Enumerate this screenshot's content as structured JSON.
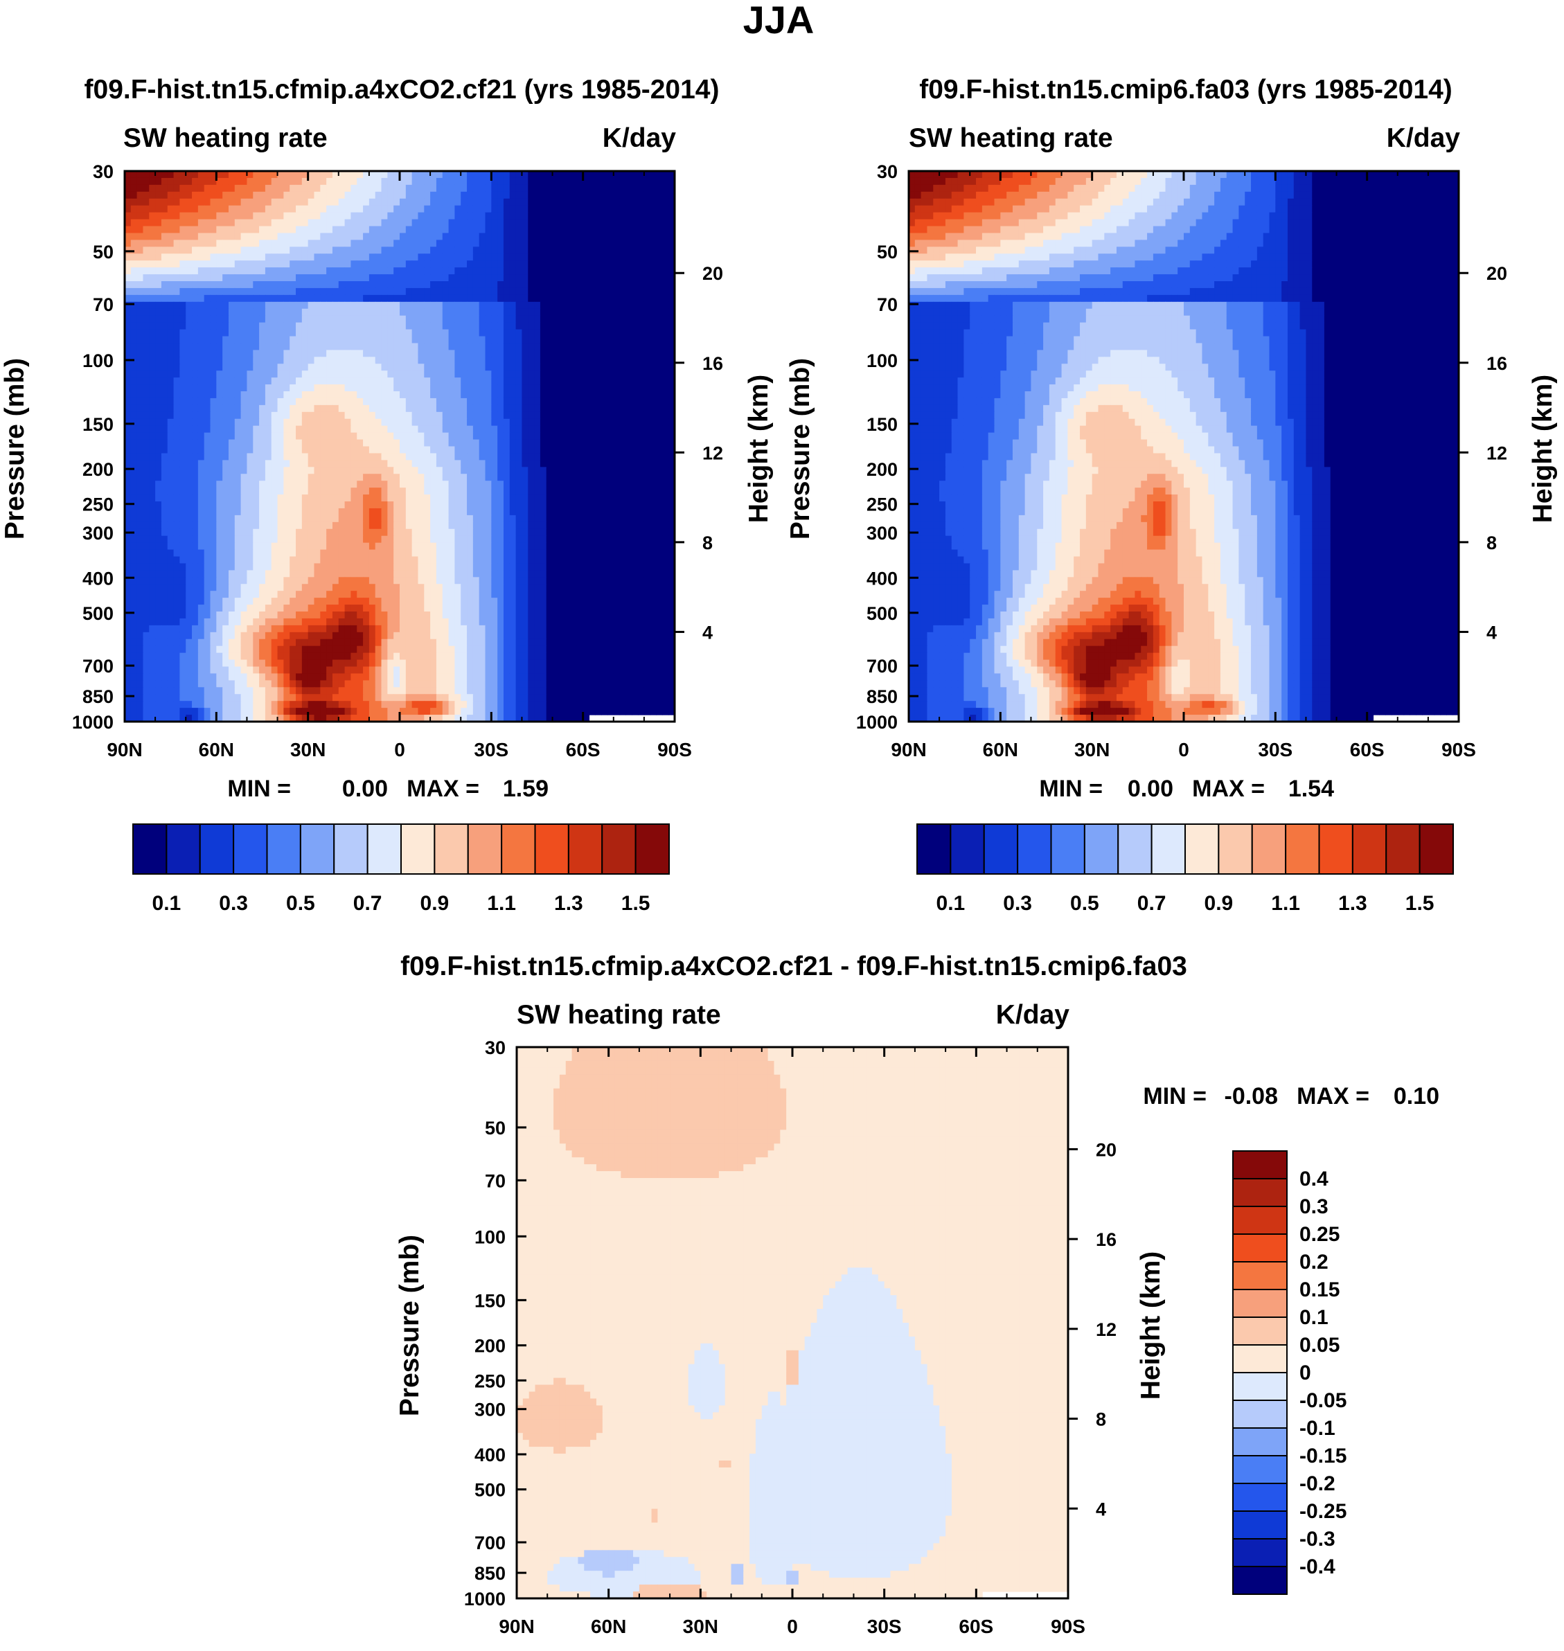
{
  "figure": {
    "title": "JJA"
  },
  "chart_data": [
    {
      "id": "panel1",
      "type": "heatmap",
      "title": "f09.F-hist.tn15.cfmip.a4xCO2.cf21 (yrs 1985-2014)",
      "left_label": "SW heating rate",
      "right_label": "K/day",
      "ylabel": "Pressure (mb)",
      "y2label": "Height (km)",
      "x_ticks": [
        "90N",
        "60N",
        "30N",
        "0",
        "30S",
        "60S",
        "90S"
      ],
      "x_range": [
        90,
        -90
      ],
      "y_ticks": [
        30,
        50,
        70,
        100,
        150,
        200,
        250,
        300,
        400,
        500,
        700,
        850,
        1000
      ],
      "y_range": [
        30,
        1000
      ],
      "y2_ticks": [
        20,
        16,
        12,
        8,
        4
      ],
      "stats": {
        "min_label": "MIN =",
        "min": "0.00",
        "max_label": "MAX =",
        "max": "1.59"
      },
      "colorbar": {
        "orientation": "horizontal",
        "labels": [
          "0.1",
          "0.3",
          "0.5",
          "0.7",
          "0.9",
          "1.1",
          "1.3",
          "1.5"
        ],
        "levels": [
          0.1,
          0.2,
          0.3,
          0.4,
          0.5,
          0.6,
          0.7,
          0.8,
          0.9,
          1.0,
          1.1,
          1.2,
          1.3,
          1.4,
          1.5
        ]
      },
      "blobs": [
        {
          "lat": 30,
          "p": 780,
          "r_lat": 9,
          "r_p": 90,
          "v": 0.4
        },
        {
          "lat": 30,
          "p": 640,
          "r_lat": 18,
          "r_p": 120,
          "v": 0.35
        },
        {
          "lat": 28,
          "p": 935,
          "r_lat": 12,
          "r_p": 60,
          "v": 0.6
        },
        {
          "lat": 26,
          "p": 950,
          "r_lat": 5,
          "r_p": 22,
          "v": 0.5
        },
        {
          "lat": 15,
          "p": 560,
          "r_lat": 8,
          "r_p": 120,
          "v": 0.3
        },
        {
          "lat": 8,
          "p": 270,
          "r_lat": 5,
          "r_p": 60,
          "v": 0.25
        },
        {
          "lat": 2,
          "p": 750,
          "r_lat": 6,
          "r_p": 180,
          "v": -0.35
        },
        {
          "lat": -10,
          "p": 910,
          "r_lat": 10,
          "r_p": 50,
          "v": 0.35
        },
        {
          "lat": 50,
          "p": 600,
          "r_lat": 25,
          "r_p": 150,
          "v": 0.15
        },
        {
          "lat": 70,
          "p": 500,
          "r_lat": 10,
          "r_p": 200,
          "v": -0.15
        },
        {
          "lat": 68,
          "p": 960,
          "r_lat": 5,
          "r_p": 50,
          "v": -0.3
        },
        {
          "lat": 28,
          "p": 150,
          "r_lat": 15,
          "r_p": 40,
          "v": 0.2
        }
      ]
    },
    {
      "id": "panel2",
      "type": "heatmap",
      "title": "f09.F-hist.tn15.cmip6.fa03 (yrs 1985-2014)",
      "left_label": "SW heating rate",
      "right_label": "K/day",
      "ylabel": "Pressure (mb)",
      "y2label": "Height (km)",
      "x_ticks": [
        "90N",
        "60N",
        "30N",
        "0",
        "30S",
        "60S",
        "90S"
      ],
      "x_range": [
        90,
        -90
      ],
      "y_ticks": [
        30,
        50,
        70,
        100,
        150,
        200,
        250,
        300,
        400,
        500,
        700,
        850,
        1000
      ],
      "y_range": [
        30,
        1000
      ],
      "y2_ticks": [
        20,
        16,
        12,
        8,
        4
      ],
      "stats": {
        "min_label": "MIN =",
        "min": "0.00",
        "max_label": "MAX =",
        "max": "1.54"
      },
      "colorbar": {
        "orientation": "horizontal",
        "labels": [
          "0.1",
          "0.3",
          "0.5",
          "0.7",
          "0.9",
          "1.1",
          "1.3",
          "1.5"
        ],
        "levels": [
          0.1,
          0.2,
          0.3,
          0.4,
          0.5,
          0.6,
          0.7,
          0.8,
          0.9,
          1.0,
          1.1,
          1.2,
          1.3,
          1.4,
          1.5
        ]
      },
      "blobs": [
        {
          "lat": 30,
          "p": 780,
          "r_lat": 9,
          "r_p": 90,
          "v": 0.4
        },
        {
          "lat": 30,
          "p": 640,
          "r_lat": 18,
          "r_p": 120,
          "v": 0.35
        },
        {
          "lat": 28,
          "p": 935,
          "r_lat": 12,
          "r_p": 60,
          "v": 0.55
        },
        {
          "lat": 26,
          "p": 950,
          "r_lat": 5,
          "r_p": 22,
          "v": 0.45
        },
        {
          "lat": 15,
          "p": 560,
          "r_lat": 8,
          "r_p": 120,
          "v": 0.3
        },
        {
          "lat": 8,
          "p": 270,
          "r_lat": 5,
          "r_p": 60,
          "v": 0.3
        },
        {
          "lat": 2,
          "p": 750,
          "r_lat": 6,
          "r_p": 180,
          "v": -0.3
        },
        {
          "lat": -10,
          "p": 910,
          "r_lat": 10,
          "r_p": 50,
          "v": 0.3
        },
        {
          "lat": 50,
          "p": 600,
          "r_lat": 25,
          "r_p": 150,
          "v": 0.15
        },
        {
          "lat": 70,
          "p": 500,
          "r_lat": 10,
          "r_p": 200,
          "v": -0.15
        },
        {
          "lat": 68,
          "p": 960,
          "r_lat": 5,
          "r_p": 50,
          "v": -0.3
        },
        {
          "lat": 28,
          "p": 150,
          "r_lat": 15,
          "r_p": 40,
          "v": 0.2
        }
      ]
    },
    {
      "id": "panel3",
      "type": "heatmap",
      "title": "f09.F-hist.tn15.cfmip.a4xCO2.cf21 - f09.F-hist.tn15.cmip6.fa03",
      "left_label": "SW heating rate",
      "right_label": "K/day",
      "ylabel": "Pressure (mb)",
      "y2label": "Height (km)",
      "x_ticks": [
        "90N",
        "60N",
        "30N",
        "0",
        "30S",
        "60S",
        "90S"
      ],
      "x_range": [
        90,
        -90
      ],
      "y_ticks": [
        30,
        50,
        70,
        100,
        150,
        200,
        250,
        300,
        400,
        500,
        700,
        850,
        1000
      ],
      "y_range": [
        30,
        1000
      ],
      "y2_ticks": [
        20,
        16,
        12,
        8,
        4
      ],
      "stats": {
        "min_label": "MIN =",
        "min": "-0.08",
        "max_label": "MAX =",
        "max": "0.10"
      },
      "colorbar": {
        "orientation": "vertical",
        "labels": [
          "0.4",
          "0.3",
          "0.25",
          "0.2",
          "0.15",
          "0.1",
          "0.05",
          "0",
          "-0.05",
          "-0.1",
          "-0.15",
          "-0.2",
          "-0.25",
          "-0.3",
          "-0.4"
        ],
        "levels": [
          -0.4,
          -0.3,
          -0.25,
          -0.2,
          -0.15,
          -0.1,
          -0.05,
          0,
          0.05,
          0.1,
          0.15,
          0.2,
          0.25,
          0.3,
          0.4
        ]
      },
      "blobs": [
        {
          "lat": 76,
          "p": 320,
          "r_lat": 14,
          "r_p": 70,
          "v": 0.07
        },
        {
          "lat": 40,
          "p": 45,
          "r_lat": 38,
          "r_p": 25,
          "v": 0.07
        },
        {
          "lat": 40,
          "p": 960,
          "r_lat": 16,
          "r_p": 30,
          "v": 0.07
        },
        {
          "lat": 0,
          "p": 230,
          "r_lat": 2,
          "r_p": 30,
          "v": 0.07
        },
        {
          "lat": 22,
          "p": 430,
          "r_lat": 2,
          "r_p": 15,
          "v": 0.07
        },
        {
          "lat": 45,
          "p": 600,
          "r_lat": 2,
          "r_p": 30,
          "v": 0.07
        }
      ],
      "neg_regions": [
        {
          "lat": -22,
          "p": 500,
          "r_lat": 30,
          "r_p": 380,
          "v": -0.04
        },
        {
          "lat": 6,
          "p": 600,
          "r_lat": 9,
          "r_p": 330,
          "v": -0.04
        },
        {
          "lat": 55,
          "p": 860,
          "r_lat": 25,
          "r_p": 130,
          "v": -0.04
        },
        {
          "lat": 28,
          "p": 260,
          "r_lat": 6,
          "r_p": 60,
          "v": -0.04
        },
        {
          "lat": 60,
          "p": 790,
          "r_lat": 10,
          "r_p": 70,
          "v": -0.09
        },
        {
          "lat": 0,
          "p": 870,
          "r_lat": 3,
          "r_p": 40,
          "v": -0.09
        },
        {
          "lat": 18,
          "p": 860,
          "r_lat": 3,
          "r_p": 60,
          "v": -0.09
        }
      ]
    }
  ]
}
